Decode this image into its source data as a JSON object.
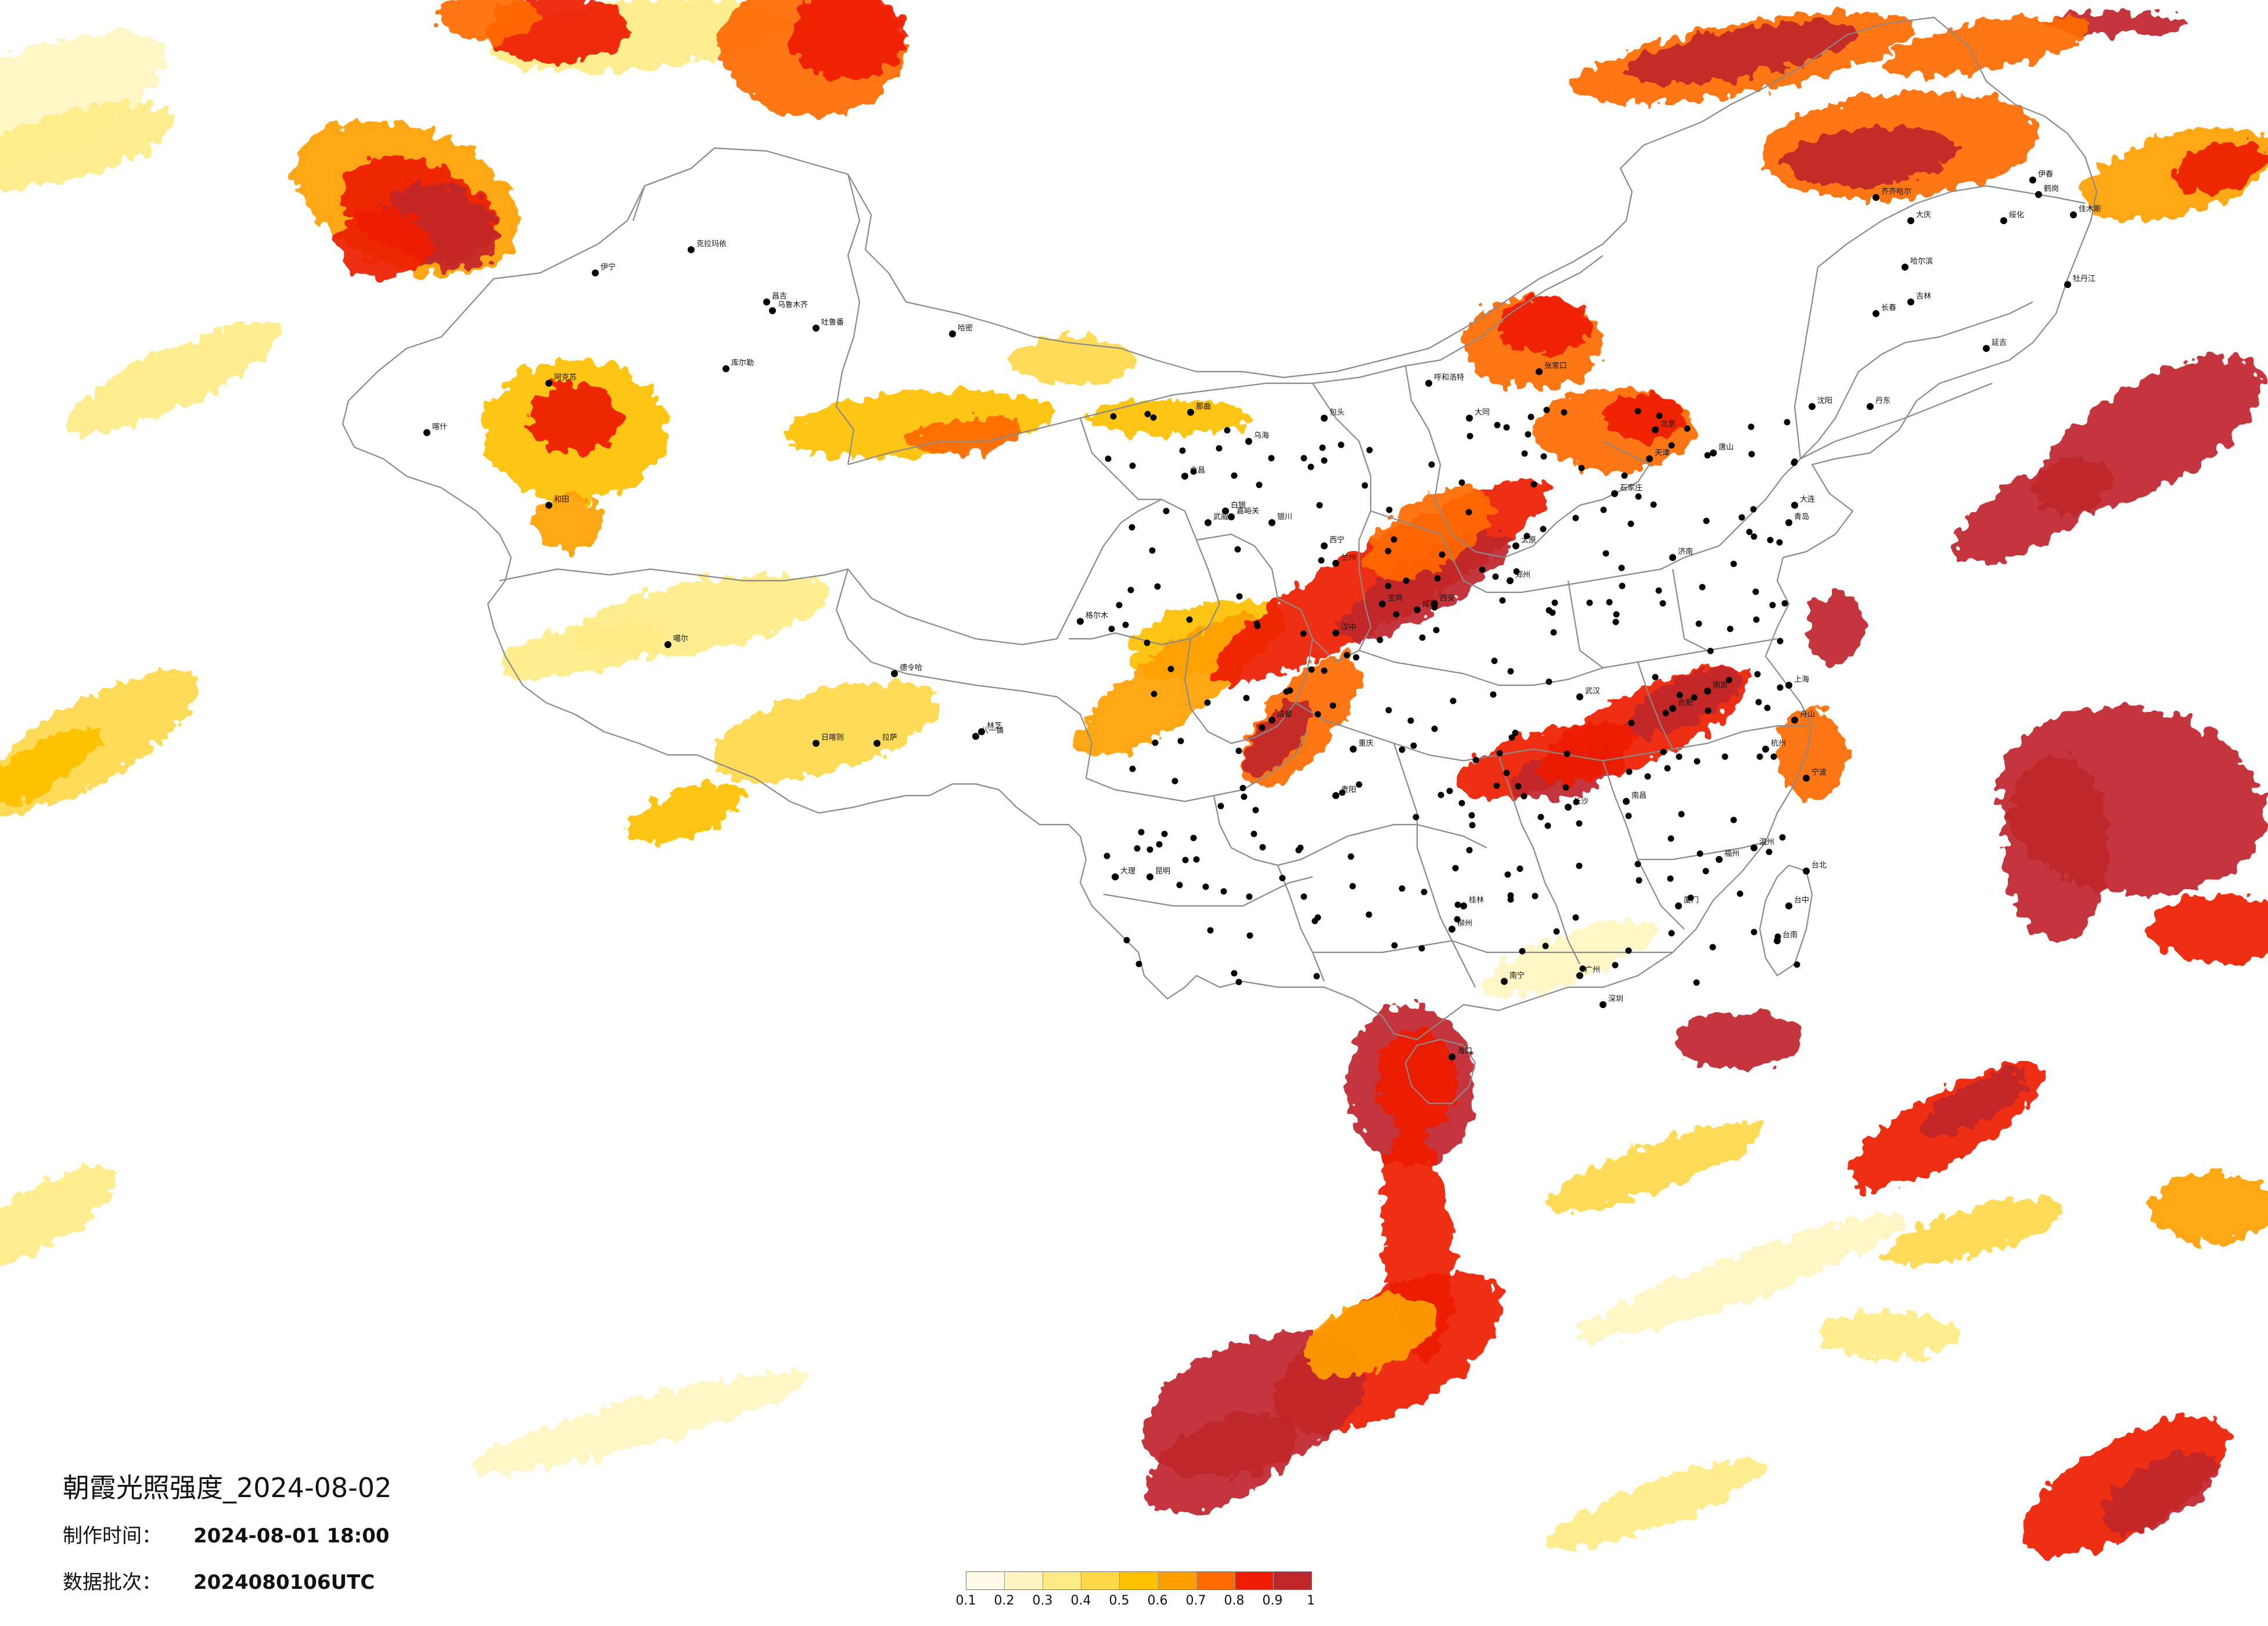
{
  "title": "朝霞光照强度_2024-08-02",
  "production_time": {
    "label": "制作时间：",
    "value": "2024-08-01 18:00"
  },
  "data_batch": {
    "label": "数据批次：",
    "value": "2024080106UTC"
  },
  "legend": {
    "colors": [
      "#fffbe8",
      "#fff5c0",
      "#ffeb85",
      "#ffd84a",
      "#ffc000",
      "#ffa000",
      "#ff6a00",
      "#ee1c00",
      "#c0252a"
    ],
    "ticks": [
      "0.1",
      "0.2",
      "0.3",
      "0.4",
      "0.5",
      "0.6",
      "0.7",
      "0.8",
      "0.9",
      "1"
    ]
  },
  "cities": [
    "克拉玛依",
    "伊宁",
    "昌吉",
    "乌鲁木齐",
    "吐鲁番",
    "哈密",
    "库尔勒",
    "阿克苏",
    "喀什",
    "和田",
    "格尔木",
    "德令哈",
    "噶尔",
    "日喀则",
    "拉萨",
    "林芝",
    "八一镇",
    "那曲",
    "嘉峪关",
    "武威",
    "金昌",
    "西宁",
    "兰州",
    "白银",
    "银川",
    "乌海",
    "包头",
    "呼和浩特",
    "大同",
    "张家口",
    "北京",
    "天津",
    "唐山",
    "石家庄",
    "太原",
    "济南",
    "青岛",
    "郑州",
    "西安",
    "咸阳",
    "宝鸡",
    "汉中",
    "成都",
    "重庆",
    "贵阳",
    "昆明",
    "大理",
    "南宁",
    "桂林",
    "柳州",
    "长沙",
    "武汉",
    "南昌",
    "合肥",
    "南京",
    "上海",
    "杭州",
    "福州",
    "厦门",
    "广州",
    "深圳",
    "海口",
    "台北",
    "台中",
    "台南",
    "沈阳",
    "长春",
    "吉林",
    "哈尔滨",
    "齐齐哈尔",
    "大庆",
    "牡丹江",
    "佳木斯",
    "鹤岗",
    "伊春",
    "绥化",
    "延吉",
    "丹东",
    "大连",
    "舟山",
    "温州",
    "宁波"
  ]
}
